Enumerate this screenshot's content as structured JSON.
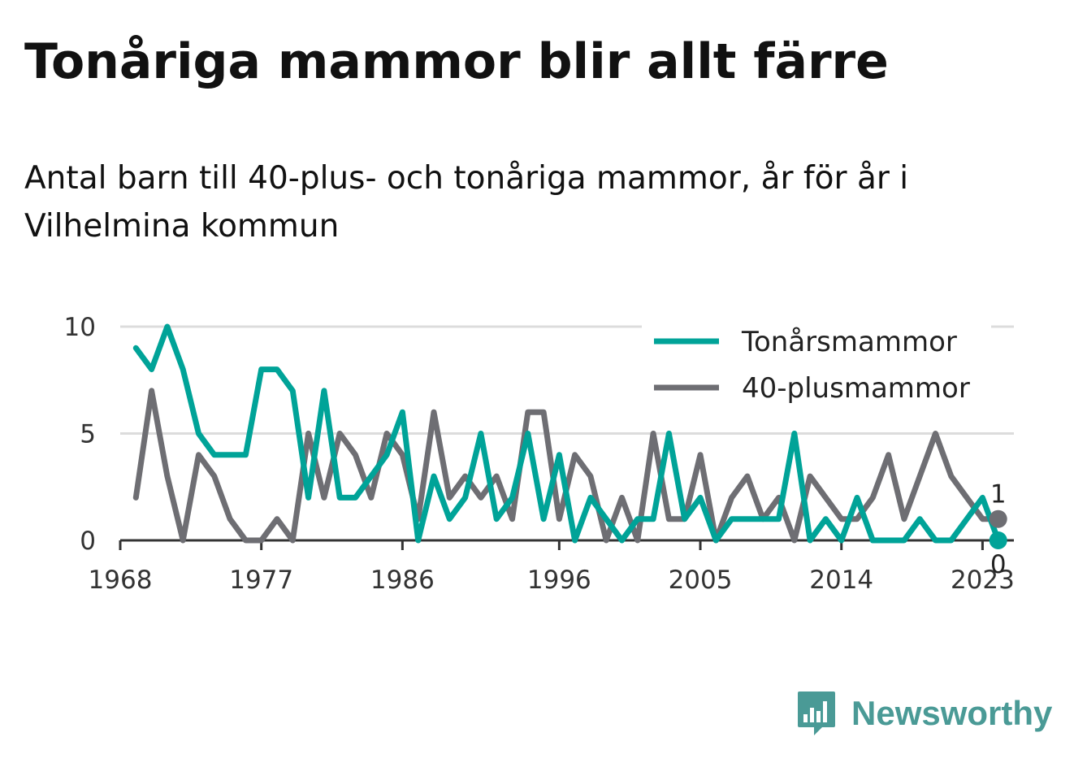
{
  "title": "Tonåriga mammor blir allt färre",
  "subtitle": "Antal barn till 40-plus- och tonåriga mammor, år för år i Vilhelmina kommun",
  "brand": {
    "name": "Newsworthy",
    "icon": "newsworthy-logo-icon",
    "color": "#4a9a96"
  },
  "chart_data": {
    "type": "line",
    "x_ticks": [
      "1968",
      "1977",
      "1986",
      "1996",
      "2005",
      "2014",
      "2023"
    ],
    "y_ticks": [
      "0",
      "5",
      "10"
    ],
    "xlim": [
      1968,
      2025
    ],
    "ylim": [
      0,
      10
    ],
    "grid": "horizontal",
    "legend_position": "top-right",
    "x": [
      1969,
      1970,
      1971,
      1972,
      1973,
      1974,
      1975,
      1976,
      1977,
      1978,
      1979,
      1980,
      1981,
      1982,
      1983,
      1984,
      1985,
      1986,
      1987,
      1988,
      1989,
      1990,
      1991,
      1992,
      1993,
      1994,
      1995,
      1996,
      1997,
      1998,
      1999,
      2000,
      2001,
      2002,
      2003,
      2004,
      2005,
      2006,
      2007,
      2008,
      2009,
      2010,
      2011,
      2012,
      2013,
      2014,
      2015,
      2016,
      2017,
      2018,
      2019,
      2020,
      2021,
      2022,
      2023,
      2024
    ],
    "series": [
      {
        "name": "Tonårsmammor",
        "color": "#00a398",
        "values": [
          9,
          8,
          10,
          8,
          5,
          4,
          4,
          4,
          8,
          8,
          7,
          2,
          7,
          2,
          2,
          3,
          4,
          6,
          0,
          3,
          1,
          2,
          5,
          1,
          2,
          5,
          1,
          4,
          0,
          2,
          1,
          0,
          1,
          1,
          5,
          1,
          2,
          0,
          1,
          1,
          1,
          1,
          5,
          0,
          1,
          0,
          2,
          0,
          0,
          0,
          1,
          0,
          0,
          1,
          2,
          0
        ],
        "end_label": "0"
      },
      {
        "name": "40-plusmammor",
        "color": "#6e6e73",
        "values": [
          2,
          7,
          3,
          0,
          4,
          3,
          1,
          0,
          0,
          1,
          0,
          5,
          2,
          5,
          4,
          2,
          5,
          4,
          1,
          6,
          2,
          3,
          2,
          3,
          1,
          6,
          6,
          1,
          4,
          3,
          0,
          2,
          0,
          5,
          1,
          1,
          4,
          0,
          2,
          3,
          1,
          2,
          0,
          3,
          2,
          1,
          1,
          2,
          4,
          1,
          3,
          5,
          3,
          2,
          1,
          1
        ],
        "end_label": "1"
      }
    ]
  }
}
